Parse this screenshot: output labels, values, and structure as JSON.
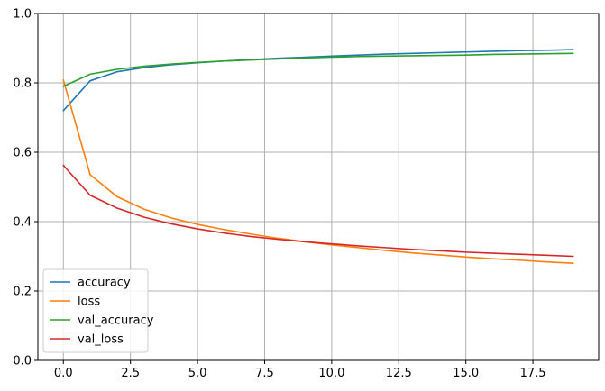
{
  "chart_data": {
    "type": "line",
    "title": "",
    "xlabel": "",
    "ylabel": "",
    "xlim": [
      -0.95,
      19.95
    ],
    "ylim": [
      0,
      1
    ],
    "grid": true,
    "legend_position": "lower-left",
    "xticks": [
      0.0,
      2.5,
      5.0,
      7.5,
      10.0,
      12.5,
      15.0,
      17.5
    ],
    "xtick_labels": [
      "0.0",
      "2.5",
      "5.0",
      "7.5",
      "10.0",
      "12.5",
      "15.0",
      "17.5"
    ],
    "yticks": [
      0.0,
      0.2,
      0.4,
      0.6,
      0.8,
      1.0
    ],
    "ytick_labels": [
      "0.0",
      "0.2",
      "0.4",
      "0.6",
      "0.8",
      "1.0"
    ],
    "x": [
      0,
      1,
      2,
      3,
      4,
      5,
      6,
      7,
      8,
      9,
      10,
      11,
      12,
      13,
      14,
      15,
      16,
      17,
      18,
      19
    ],
    "series": [
      {
        "name": "accuracy",
        "color": "#1f77b4",
        "values": [
          0.72,
          0.806,
          0.832,
          0.844,
          0.852,
          0.858,
          0.863,
          0.867,
          0.871,
          0.874,
          0.877,
          0.88,
          0.883,
          0.885,
          0.887,
          0.889,
          0.891,
          0.893,
          0.894,
          0.896
        ]
      },
      {
        "name": "loss",
        "color": "#ff7f0e",
        "values": [
          0.808,
          0.535,
          0.472,
          0.436,
          0.411,
          0.392,
          0.377,
          0.364,
          0.352,
          0.342,
          0.333,
          0.325,
          0.317,
          0.31,
          0.304,
          0.298,
          0.293,
          0.289,
          0.284,
          0.28
        ]
      },
      {
        "name": "val_accuracy",
        "color": "#2ca02c",
        "values": [
          0.79,
          0.825,
          0.839,
          0.848,
          0.854,
          0.859,
          0.863,
          0.866,
          0.869,
          0.872,
          0.874,
          0.876,
          0.877,
          0.878,
          0.879,
          0.88,
          0.882,
          0.883,
          0.884,
          0.885
        ]
      },
      {
        "name": "val_loss",
        "color": "#d62728",
        "values": [
          0.562,
          0.476,
          0.439,
          0.413,
          0.394,
          0.379,
          0.367,
          0.357,
          0.349,
          0.342,
          0.336,
          0.33,
          0.325,
          0.32,
          0.316,
          0.312,
          0.309,
          0.306,
          0.303,
          0.3
        ]
      }
    ]
  }
}
